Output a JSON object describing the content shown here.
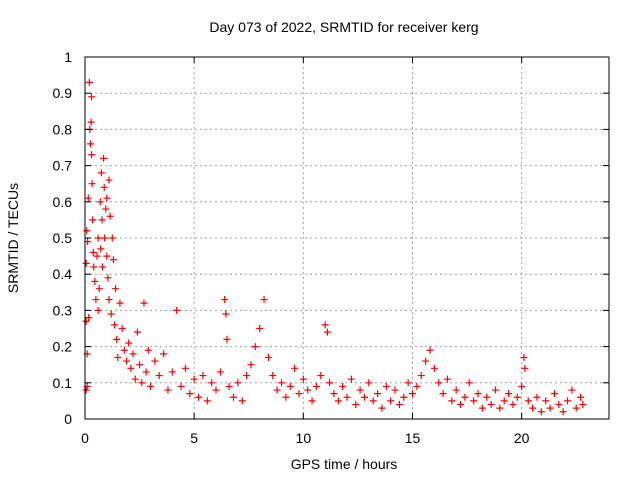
{
  "chart_data": {
    "type": "scatter",
    "title": "Day 073 of 2022, SRMTID for receiver kerg",
    "xlabel": "GPS time / hours",
    "ylabel": "SRMTID / TECUs",
    "xlim": [
      0,
      24
    ],
    "ylim": [
      0,
      1
    ],
    "grid": true,
    "marker": "+",
    "xticks": [
      0,
      5,
      10,
      15,
      20
    ],
    "xtick_labels": [
      "0",
      "5",
      "10",
      "15",
      "20"
    ],
    "yticks": [
      0,
      0.1,
      0.2,
      0.3,
      0.4,
      0.5,
      0.6,
      0.7,
      0.8,
      0.9,
      1
    ],
    "ytick_labels": [
      "0",
      "0.1",
      "0.2",
      "0.3",
      "0.4",
      "0.5",
      "0.6",
      "0.7",
      "0.8",
      "0.9",
      "1"
    ],
    "series": [
      {
        "name": "SRMTID",
        "color": "#ff0000",
        "points": [
          [
            0.05,
            0.08
          ],
          [
            0.05,
            0.27
          ],
          [
            0.05,
            0.43
          ],
          [
            0.08,
            0.52
          ],
          [
            0.1,
            0.18
          ],
          [
            0.1,
            0.09
          ],
          [
            0.12,
            0.49
          ],
          [
            0.15,
            0.61
          ],
          [
            0.17,
            0.28
          ],
          [
            0.2,
            0.93
          ],
          [
            0.22,
            0.8
          ],
          [
            0.25,
            0.76
          ],
          [
            0.28,
            0.82
          ],
          [
            0.3,
            0.89
          ],
          [
            0.3,
            0.73
          ],
          [
            0.32,
            0.65
          ],
          [
            0.35,
            0.55
          ],
          [
            0.38,
            0.46
          ],
          [
            0.4,
            0.42
          ],
          [
            0.45,
            0.38
          ],
          [
            0.5,
            0.33
          ],
          [
            0.55,
            0.45
          ],
          [
            0.6,
            0.5
          ],
          [
            0.6,
            0.3
          ],
          [
            0.65,
            0.36
          ],
          [
            0.7,
            0.6
          ],
          [
            0.72,
            0.47
          ],
          [
            0.75,
            0.68
          ],
          [
            0.78,
            0.55
          ],
          [
            0.8,
            0.42
          ],
          [
            0.85,
            0.72
          ],
          [
            0.88,
            0.64
          ],
          [
            0.9,
            0.5
          ],
          [
            0.95,
            0.58
          ],
          [
            1.0,
            0.61
          ],
          [
            1.0,
            0.45
          ],
          [
            1.05,
            0.39
          ],
          [
            1.1,
            0.66
          ],
          [
            1.1,
            0.33
          ],
          [
            1.15,
            0.56
          ],
          [
            1.2,
            0.29
          ],
          [
            1.25,
            0.5
          ],
          [
            1.3,
            0.44
          ],
          [
            1.35,
            0.26
          ],
          [
            1.4,
            0.36
          ],
          [
            1.45,
            0.22
          ],
          [
            1.5,
            0.17
          ],
          [
            1.6,
            0.32
          ],
          [
            1.7,
            0.25
          ],
          [
            1.8,
            0.19
          ],
          [
            1.9,
            0.16
          ],
          [
            2.0,
            0.21
          ],
          [
            2.1,
            0.14
          ],
          [
            2.2,
            0.18
          ],
          [
            2.3,
            0.11
          ],
          [
            2.4,
            0.24
          ],
          [
            2.5,
            0.15
          ],
          [
            2.6,
            0.1
          ],
          [
            2.7,
            0.32
          ],
          [
            2.8,
            0.13
          ],
          [
            2.9,
            0.19
          ],
          [
            3.0,
            0.09
          ],
          [
            3.2,
            0.16
          ],
          [
            3.4,
            0.12
          ],
          [
            3.6,
            0.18
          ],
          [
            3.8,
            0.08
          ],
          [
            4.0,
            0.13
          ],
          [
            4.2,
            0.3
          ],
          [
            4.4,
            0.09
          ],
          [
            4.6,
            0.14
          ],
          [
            4.8,
            0.07
          ],
          [
            5.0,
            0.11
          ],
          [
            5.2,
            0.06
          ],
          [
            5.4,
            0.12
          ],
          [
            5.6,
            0.05
          ],
          [
            5.8,
            0.1
          ],
          [
            6.0,
            0.08
          ],
          [
            6.2,
            0.13
          ],
          [
            6.4,
            0.33
          ],
          [
            6.45,
            0.29
          ],
          [
            6.5,
            0.22
          ],
          [
            6.6,
            0.09
          ],
          [
            6.8,
            0.06
          ],
          [
            7.0,
            0.1
          ],
          [
            7.2,
            0.05
          ],
          [
            7.4,
            0.12
          ],
          [
            7.6,
            0.15
          ],
          [
            7.8,
            0.2
          ],
          [
            8.0,
            0.25
          ],
          [
            8.2,
            0.33
          ],
          [
            8.4,
            0.17
          ],
          [
            8.6,
            0.12
          ],
          [
            8.8,
            0.08
          ],
          [
            9.0,
            0.1
          ],
          [
            9.2,
            0.06
          ],
          [
            9.4,
            0.09
          ],
          [
            9.6,
            0.14
          ],
          [
            9.8,
            0.07
          ],
          [
            10.0,
            0.11
          ],
          [
            10.2,
            0.08
          ],
          [
            10.4,
            0.05
          ],
          [
            10.6,
            0.09
          ],
          [
            10.8,
            0.12
          ],
          [
            11.0,
            0.26
          ],
          [
            11.1,
            0.24
          ],
          [
            11.2,
            0.1
          ],
          [
            11.4,
            0.07
          ],
          [
            11.6,
            0.05
          ],
          [
            11.8,
            0.09
          ],
          [
            12.0,
            0.06
          ],
          [
            12.2,
            0.11
          ],
          [
            12.4,
            0.04
          ],
          [
            12.6,
            0.08
          ],
          [
            12.8,
            0.06
          ],
          [
            13.0,
            0.1
          ],
          [
            13.2,
            0.05
          ],
          [
            13.4,
            0.07
          ],
          [
            13.6,
            0.03
          ],
          [
            13.8,
            0.09
          ],
          [
            14.0,
            0.05
          ],
          [
            14.2,
            0.08
          ],
          [
            14.4,
            0.04
          ],
          [
            14.6,
            0.06
          ],
          [
            14.8,
            0.1
          ],
          [
            15.0,
            0.07
          ],
          [
            15.2,
            0.09
          ],
          [
            15.4,
            0.12
          ],
          [
            15.6,
            0.16
          ],
          [
            15.8,
            0.19
          ],
          [
            16.0,
            0.14
          ],
          [
            16.2,
            0.1
          ],
          [
            16.4,
            0.07
          ],
          [
            16.6,
            0.11
          ],
          [
            16.8,
            0.05
          ],
          [
            17.0,
            0.08
          ],
          [
            17.2,
            0.04
          ],
          [
            17.4,
            0.06
          ],
          [
            17.6,
            0.1
          ],
          [
            17.8,
            0.05
          ],
          [
            18.0,
            0.07
          ],
          [
            18.2,
            0.03
          ],
          [
            18.4,
            0.06
          ],
          [
            18.6,
            0.04
          ],
          [
            18.8,
            0.08
          ],
          [
            19.0,
            0.03
          ],
          [
            19.2,
            0.05
          ],
          [
            19.4,
            0.07
          ],
          [
            19.6,
            0.04
          ],
          [
            19.8,
            0.06
          ],
          [
            20.0,
            0.09
          ],
          [
            20.1,
            0.17
          ],
          [
            20.15,
            0.14
          ],
          [
            20.3,
            0.05
          ],
          [
            20.5,
            0.03
          ],
          [
            20.7,
            0.06
          ],
          [
            20.9,
            0.02
          ],
          [
            21.1,
            0.05
          ],
          [
            21.3,
            0.03
          ],
          [
            21.5,
            0.07
          ],
          [
            21.7,
            0.04
          ],
          [
            21.9,
            0.02
          ],
          [
            22.1,
            0.05
          ],
          [
            22.3,
            0.08
          ],
          [
            22.5,
            0.03
          ],
          [
            22.7,
            0.06
          ],
          [
            22.8,
            0.04
          ]
        ]
      }
    ]
  }
}
